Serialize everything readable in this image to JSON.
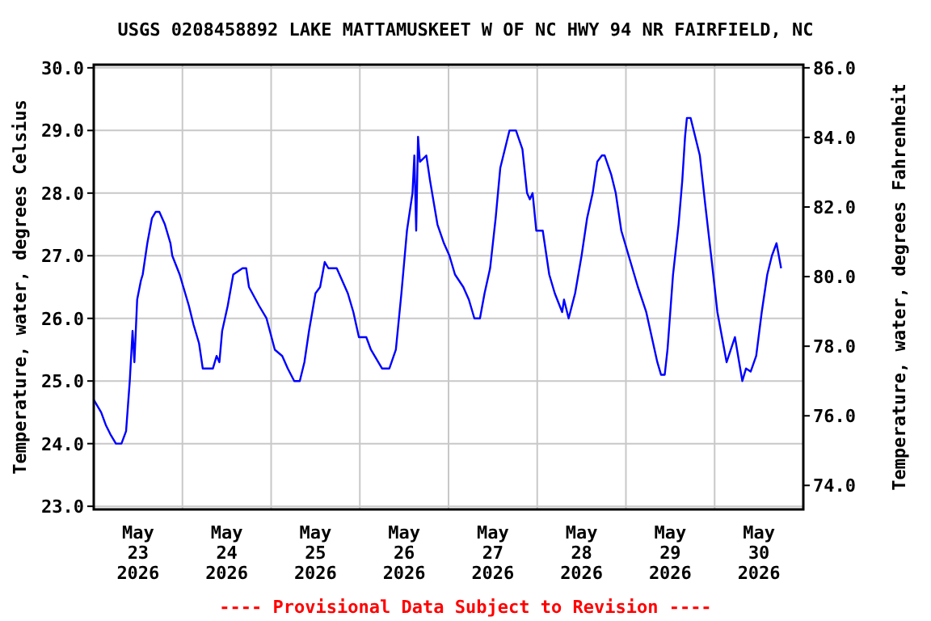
{
  "chart_data": {
    "type": "line",
    "title": "USGS 0208458892 LAKE MATTAMUSKEET W OF NC HWY 94 NR FAIRFIELD, NC",
    "ylabel": "Temperature, water, degrees Celsius",
    "y2label": "Temperature, water, degrees Fahrenheit",
    "annotations": [
      "---- Provisional Data Subject to Revision ----"
    ],
    "grid": true,
    "xlim": [
      "2026-05-23T00:00",
      "2026-05-31T00:00"
    ],
    "xticks": [
      {
        "value": "2026-05-23T00:00",
        "label": null
      },
      {
        "value": "2026-05-24T00:00",
        "label": null
      },
      {
        "value": "2026-05-25T00:00",
        "label": null
      },
      {
        "value": "2026-05-26T00:00",
        "label": null
      },
      {
        "value": "2026-05-27T00:00",
        "label": null
      },
      {
        "value": "2026-05-28T00:00",
        "label": null
      },
      {
        "value": "2026-05-29T00:00",
        "label": null
      },
      {
        "value": "2026-05-30T00:00",
        "label": null
      },
      {
        "value": "2026-05-31T00:00",
        "label": null
      },
      {
        "value": "2026-05-23T12:00",
        "label": "May\n23\n2026"
      },
      {
        "value": "2026-05-24T12:00",
        "label": "May\n24\n2026"
      },
      {
        "value": "2026-05-25T12:00",
        "label": "May\n25\n2026"
      },
      {
        "value": "2026-05-26T12:00",
        "label": "May\n26\n2026"
      },
      {
        "value": "2026-05-27T12:00",
        "label": "May\n27\n2026"
      },
      {
        "value": "2026-05-28T12:00",
        "label": "May\n28\n2026"
      },
      {
        "value": "2026-05-29T12:00",
        "label": "May\n29\n2026"
      },
      {
        "value": "2026-05-30T12:00",
        "label": "May\n30\n2026"
      }
    ],
    "ylim": [
      22.95,
      30.05
    ],
    "yticks": [
      {
        "value": 23,
        "label": "23.0"
      },
      {
        "value": 24,
        "label": "24.0"
      },
      {
        "value": 25,
        "label": "25.0"
      },
      {
        "value": 26,
        "label": "26.0"
      },
      {
        "value": 27,
        "label": "27.0"
      },
      {
        "value": 28,
        "label": "28.0"
      },
      {
        "value": 29,
        "label": "29.0"
      },
      {
        "value": 30,
        "label": "30.0"
      }
    ],
    "y2lim": [
      73.31,
      86.09
    ],
    "y2ticks": [
      {
        "value": 74,
        "label": "74.0"
      },
      {
        "value": 76,
        "label": "76.0"
      },
      {
        "value": 78,
        "label": "78.0"
      },
      {
        "value": 80,
        "label": "80.0"
      },
      {
        "value": 82,
        "label": "82.0"
      },
      {
        "value": 84,
        "label": "84.0"
      },
      {
        "value": 86,
        "label": "86.0"
      }
    ],
    "series": [
      {
        "color": "#0000ff",
        "x": [
          "2026-05-23T00:00",
          "2026-05-23T02:00",
          "2026-05-23T03:15",
          "2026-05-23T04:30",
          "2026-05-23T06:00",
          "2026-05-23T07:30",
          "2026-05-23T08:45",
          "2026-05-23T09:15",
          "2026-05-23T09:45",
          "2026-05-23T10:30",
          "2026-05-23T11:00",
          "2026-05-23T11:45",
          "2026-05-23T12:45",
          "2026-05-23T13:15",
          "2026-05-23T14:30",
          "2026-05-23T15:45",
          "2026-05-23T16:45",
          "2026-05-23T17:45",
          "2026-05-23T19:15",
          "2026-05-23T20:45",
          "2026-05-23T21:15",
          "2026-05-23T23:15",
          "2026-05-24T00:15",
          "2026-05-24T01:45",
          "2026-05-24T03:00",
          "2026-05-24T04:30",
          "2026-05-24T05:30",
          "2026-05-24T08:15",
          "2026-05-24T09:15",
          "2026-05-24T10:00",
          "2026-05-24T10:45",
          "2026-05-24T12:15",
          "2026-05-24T13:45",
          "2026-05-24T16:15",
          "2026-05-24T17:15",
          "2026-05-24T18:00",
          "2026-05-24T20:45",
          "2026-05-24T22:45",
          "2026-05-25T01:00",
          "2026-05-25T03:00",
          "2026-05-25T04:30",
          "2026-05-25T06:15",
          "2026-05-25T07:45",
          "2026-05-25T09:00",
          "2026-05-25T10:15",
          "2026-05-25T12:00",
          "2026-05-25T13:15",
          "2026-05-25T14:30",
          "2026-05-25T15:30",
          "2026-05-25T17:45",
          "2026-05-25T19:15",
          "2026-05-25T20:45",
          "2026-05-25T22:15",
          "2026-05-25T23:45",
          "2026-05-26T01:45",
          "2026-05-26T03:00",
          "2026-05-26T06:00",
          "2026-05-26T08:00",
          "2026-05-26T09:45",
          "2026-05-26T11:15",
          "2026-05-26T12:45",
          "2026-05-26T14:15",
          "2026-05-26T14:45",
          "2026-05-26T15:15",
          "2026-05-26T15:45",
          "2026-05-26T16:15",
          "2026-05-26T18:00",
          "2026-05-26T19:00",
          "2026-05-26T21:00",
          "2026-05-26T22:45",
          "2026-05-27T00:15",
          "2026-05-27T01:45",
          "2026-05-27T04:00",
          "2026-05-27T05:30",
          "2026-05-27T07:00",
          "2026-05-27T08:30",
          "2026-05-27T09:45",
          "2026-05-27T11:15",
          "2026-05-27T12:45",
          "2026-05-27T14:00",
          "2026-05-27T15:15",
          "2026-05-27T16:30",
          "2026-05-27T18:15",
          "2026-05-27T20:00",
          "2026-05-27T21:15",
          "2026-05-27T22:00",
          "2026-05-27T22:45",
          "2026-05-27T23:45",
          "2026-05-28T01:30",
          "2026-05-28T03:15",
          "2026-05-28T04:45",
          "2026-05-28T06:45",
          "2026-05-28T07:15",
          "2026-05-28T08:30",
          "2026-05-28T10:15",
          "2026-05-28T12:00",
          "2026-05-28T13:30",
          "2026-05-28T15:00",
          "2026-05-28T16:15",
          "2026-05-28T17:30",
          "2026-05-28T18:15",
          "2026-05-28T20:00",
          "2026-05-28T21:15",
          "2026-05-28T22:45",
          "2026-05-29T01:15",
          "2026-05-29T03:15",
          "2026-05-29T05:30",
          "2026-05-29T07:00",
          "2026-05-29T08:30",
          "2026-05-29T09:30",
          "2026-05-29T10:30",
          "2026-05-29T11:15",
          "2026-05-29T12:45",
          "2026-05-29T14:15",
          "2026-05-29T15:15",
          "2026-05-29T16:00",
          "2026-05-29T16:30",
          "2026-05-29T17:30",
          "2026-05-29T18:45",
          "2026-05-29T20:00",
          "2026-05-29T21:30",
          "2026-05-29T23:15",
          "2026-05-30T00:45",
          "2026-05-30T02:00",
          "2026-05-30T03:15",
          "2026-05-30T05:30",
          "2026-05-30T07:30",
          "2026-05-30T08:30",
          "2026-05-30T09:45",
          "2026-05-30T11:15",
          "2026-05-30T12:45",
          "2026-05-30T14:15",
          "2026-05-30T15:30",
          "2026-05-30T16:45",
          "2026-05-30T18:00"
        ],
        "values": [
          24.7,
          24.5,
          24.3,
          24.15,
          24.0,
          24.0,
          24.2,
          24.6,
          25.0,
          25.8,
          25.3,
          26.3,
          26.6,
          26.7,
          27.2,
          27.6,
          27.7,
          27.7,
          27.5,
          27.2,
          27.0,
          26.7,
          26.5,
          26.2,
          25.9,
          25.6,
          25.2,
          25.2,
          25.4,
          25.3,
          25.8,
          26.2,
          26.7,
          26.8,
          26.8,
          26.5,
          26.2,
          26.0,
          25.5,
          25.4,
          25.2,
          25.0,
          25.0,
          25.3,
          25.8,
          26.4,
          26.5,
          26.9,
          26.8,
          26.8,
          26.6,
          26.4,
          26.1,
          25.7,
          25.7,
          25.5,
          25.2,
          25.2,
          25.5,
          26.4,
          27.4,
          28.0,
          28.6,
          27.4,
          28.9,
          28.5,
          28.6,
          28.2,
          27.5,
          27.2,
          27.0,
          26.7,
          26.5,
          26.3,
          26.0,
          26.0,
          26.4,
          26.8,
          27.6,
          28.4,
          28.7,
          29.0,
          29.0,
          28.7,
          28.0,
          27.9,
          28.0,
          27.4,
          27.4,
          26.7,
          26.4,
          26.1,
          26.3,
          26.0,
          26.4,
          27.0,
          27.6,
          28.0,
          28.5,
          28.6,
          28.6,
          28.3,
          28.0,
          27.4,
          26.9,
          26.5,
          26.1,
          25.7,
          25.3,
          25.1,
          25.1,
          25.5,
          26.7,
          27.5,
          28.2,
          28.9,
          29.2,
          29.2,
          28.9,
          28.6,
          27.8,
          26.9,
          26.1,
          25.7,
          25.3,
          25.7,
          25.0,
          25.2,
          25.15,
          25.4,
          26.1,
          26.7,
          27.0,
          27.2,
          26.8
        ]
      }
    ]
  }
}
